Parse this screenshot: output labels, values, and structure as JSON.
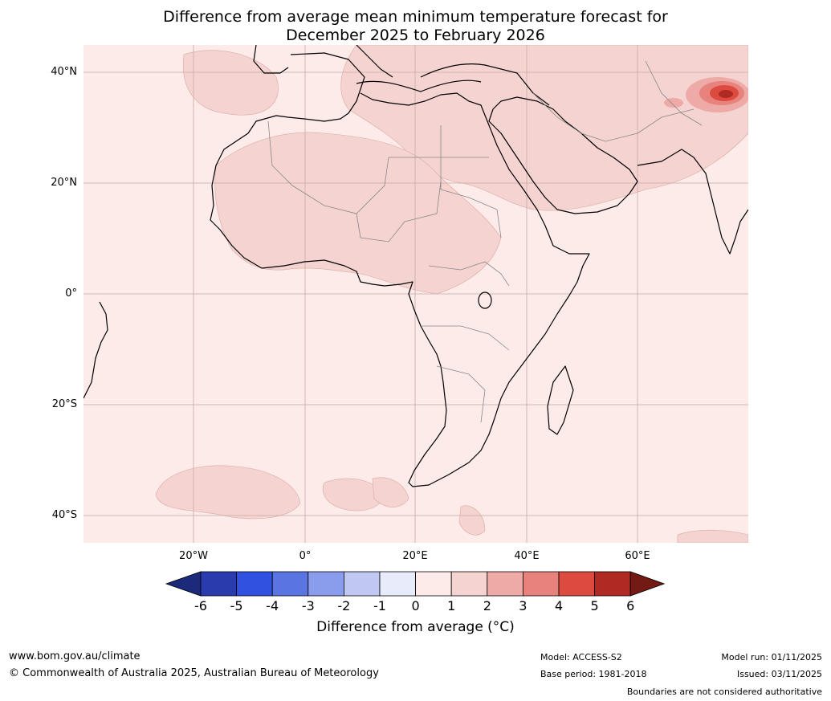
{
  "title": {
    "line1": "Difference from average mean minimum temperature forecast for",
    "line2": "December 2025 to February 2026"
  },
  "map": {
    "region": "Africa, Middle East and South Asia",
    "lat_labels": [
      "40°N",
      "20°N",
      "0°",
      "20°S",
      "40°S"
    ],
    "lon_labels": [
      "20°W",
      "0°",
      "20°E",
      "40°E",
      "60°E"
    ]
  },
  "colorbar": {
    "ticks": [
      "-6",
      "-5",
      "-4",
      "-3",
      "-2",
      "-1",
      "0",
      "1",
      "2",
      "3",
      "4",
      "5",
      "6"
    ],
    "colors": [
      "#1b2a7a",
      "#2a3cad",
      "#3151e0",
      "#5a74e2",
      "#8a9cec",
      "#c0c8f2",
      "#e8ebfa",
      "#fcebe8",
      "#f5d3d0",
      "#eeaaa6",
      "#e8827c",
      "#dd4b40",
      "#ae2a22",
      "#731a14"
    ],
    "label": "Difference from average (°C)"
  },
  "footer": {
    "website": "www.bom.gov.au/climate",
    "copyright": "© Commonwealth of Australia 2025, Australian Bureau of Meteorology",
    "model": "Model: ACCESS-S2",
    "base_period": "Base period: 1981-2018",
    "model_run": "Model run: 01/11/2025",
    "issued": "Issued: 03/11/2025",
    "disclaimer": "Boundaries are not considered authoritative"
  }
}
